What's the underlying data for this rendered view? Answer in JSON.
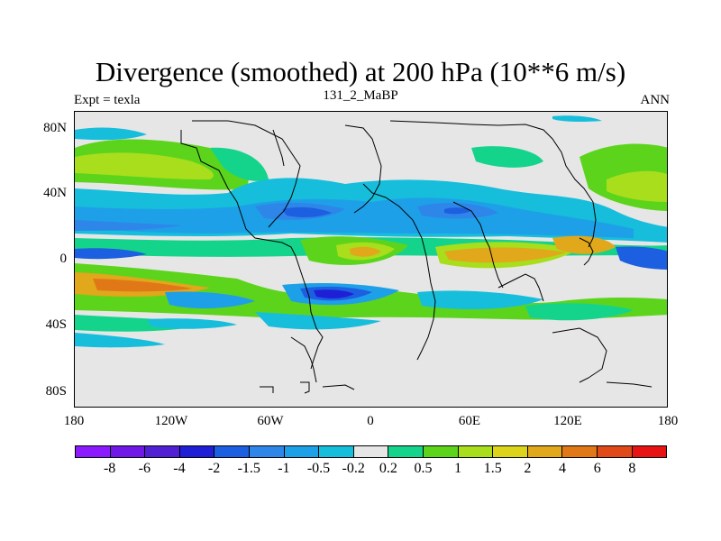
{
  "header": {
    "title": "Divergence (smoothed) at 200 hPa (10**6 m/s)",
    "experiment": "Expt = texla",
    "case": "131_2_MaBP",
    "season": "ANN"
  },
  "axes": {
    "y_ticks": [
      "80N",
      "40N",
      "0",
      "40S",
      "80S"
    ],
    "x_ticks": [
      "180",
      "120W",
      "60W",
      "0",
      "60E",
      "120E",
      "180"
    ]
  },
  "colorbar": {
    "colors": [
      "#8c1aff",
      "#6f18e8",
      "#5220d4",
      "#1f1fd6",
      "#1c5fe0",
      "#2e86e8",
      "#1ea0e8",
      "#16bedc",
      "#e6e6e6",
      "#14d48c",
      "#5cd41c",
      "#a8de1c",
      "#dcd41a",
      "#e0a81a",
      "#e07818",
      "#e04a18",
      "#e81414"
    ],
    "labels": [
      "-8",
      "-6",
      "-4",
      "-2",
      "-1.5",
      "-1",
      "-0.5",
      "-0.2",
      "0.2",
      "0.5",
      "1",
      "1.5",
      "2",
      "4",
      "6",
      "8"
    ]
  }
}
